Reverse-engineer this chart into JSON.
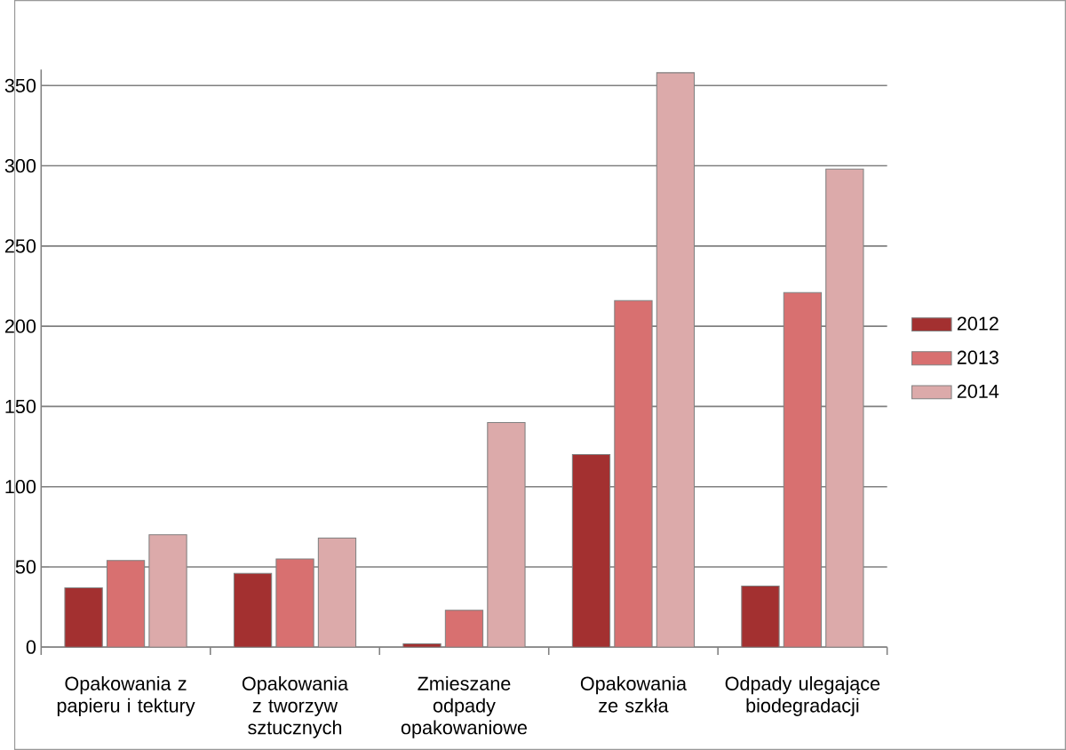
{
  "chart_data": {
    "type": "bar",
    "categories": [
      "Opakowania z papieru i tektury",
      "Opakowania z tworzyw sztucznych",
      "Zmieszane odpady opakowaniowe",
      "Opakowania ze szkła",
      "Odpady ulegające biodegradacji"
    ],
    "series": [
      {
        "name": "2012",
        "color": "#a33030",
        "values": [
          37,
          46,
          2,
          120,
          38
        ]
      },
      {
        "name": "2013",
        "color": "#d87070",
        "values": [
          54,
          55,
          23,
          216,
          221
        ]
      },
      {
        "name": "2014",
        "color": "#dcaaaa",
        "values": [
          70,
          68,
          140,
          358,
          298
        ]
      }
    ],
    "ylim": [
      0,
      360
    ],
    "yticks": [
      0,
      50,
      100,
      150,
      200,
      250,
      300,
      350
    ],
    "grid": "y",
    "legend": "right"
  }
}
